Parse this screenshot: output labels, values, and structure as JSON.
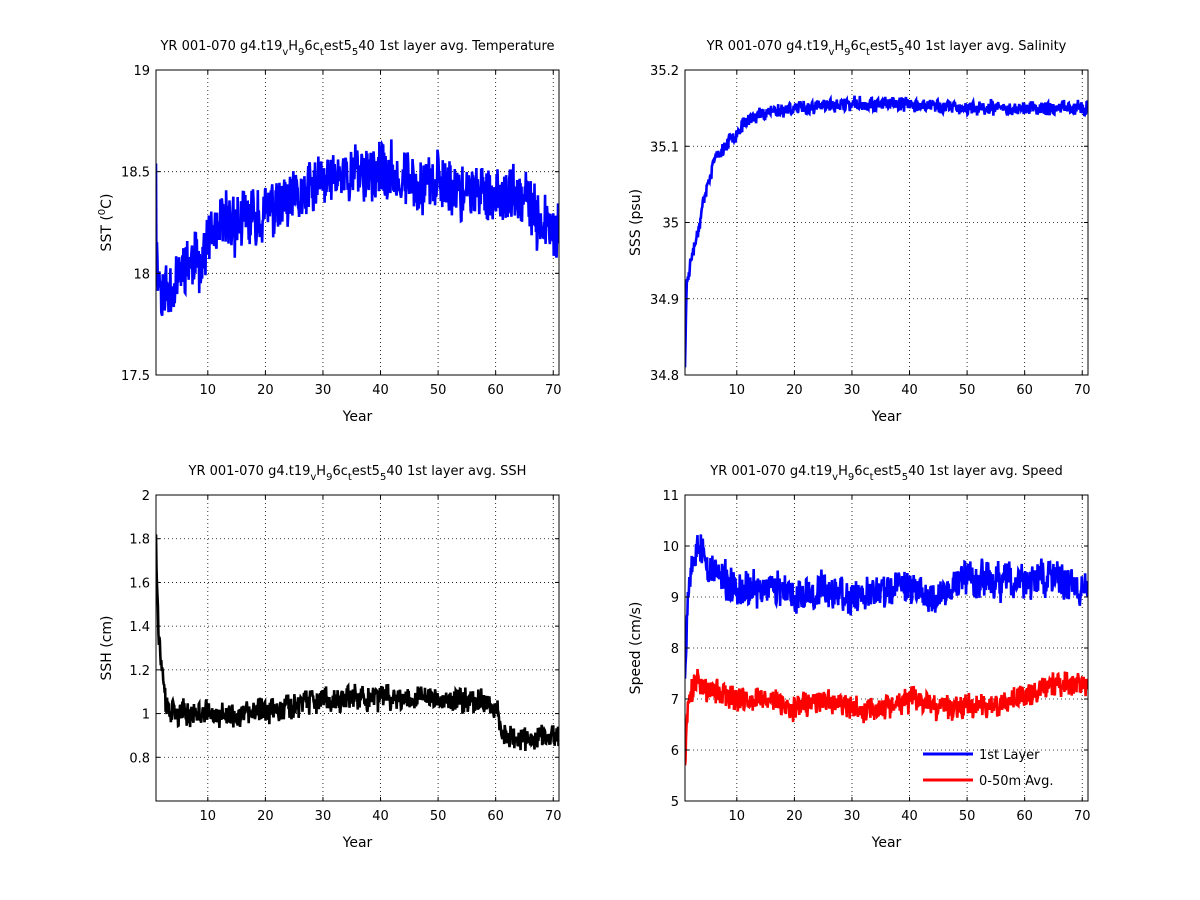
{
  "chart_data": [
    {
      "type": "line",
      "title": {
        "pre": "YR 001-070 g4.t19",
        "s1": "v",
        "m1": "H",
        "s2": "9",
        "m2": "6c",
        "s3": "t",
        "m3": "est5",
        "s4": "5",
        "post": "40 1st layer avg. Temperature"
      },
      "xlabel": "Year",
      "ylabel": {
        "pre": "SST (",
        "sup": "0",
        "post": "C)"
      },
      "xlim": [
        1,
        71
      ],
      "ylim": [
        17.5,
        19
      ],
      "xticks": [
        10,
        20,
        30,
        40,
        50,
        60,
        70
      ],
      "yticks": [
        17.5,
        18,
        18.5,
        19
      ],
      "ytick_labels": [
        "17.5",
        "18",
        "18.5",
        "19"
      ],
      "grid": true,
      "series": [
        {
          "color": "#0000ff",
          "base": [
            [
              1,
              18.1
            ],
            [
              2,
              17.9
            ],
            [
              4,
              17.95
            ],
            [
              6,
              18.05
            ],
            [
              8,
              18.05
            ],
            [
              10,
              18.15
            ],
            [
              13,
              18.25
            ],
            [
              16,
              18.25
            ],
            [
              20,
              18.3
            ],
            [
              25,
              18.35
            ],
            [
              30,
              18.45
            ],
            [
              35,
              18.5
            ],
            [
              40,
              18.5
            ],
            [
              45,
              18.45
            ],
            [
              50,
              18.45
            ],
            [
              55,
              18.4
            ],
            [
              60,
              18.4
            ],
            [
              65,
              18.35
            ],
            [
              68,
              18.25
            ],
            [
              71,
              18.2
            ]
          ],
          "amp": 0.22,
          "seed": 11,
          "start": 18.54,
          "end": 18.15,
          "points": 840
        }
      ]
    },
    {
      "type": "line",
      "title": {
        "pre": "YR 001-070 g4.t19",
        "s1": "v",
        "m1": "H",
        "s2": "9",
        "m2": "6c",
        "s3": "t",
        "m3": "est5",
        "s4": "5",
        "post": "40 1st layer avg. Salinity"
      },
      "xlabel": "Year",
      "ylabel": {
        "pre": "SSS (psu)",
        "sup": "",
        "post": ""
      },
      "xlim": [
        1,
        71
      ],
      "ylim": [
        34.8,
        35.2
      ],
      "xticks": [
        10,
        20,
        30,
        40,
        50,
        60,
        70
      ],
      "yticks": [
        34.8,
        34.9,
        35,
        35.1,
        35.2
      ],
      "ytick_labels": [
        "34.8",
        "34.9",
        "35",
        "35.1",
        "35.2"
      ],
      "grid": true,
      "series": [
        {
          "color": "#0000ff",
          "base": [
            [
              1,
              34.81
            ],
            [
              1.3,
              34.92
            ],
            [
              2,
              34.95
            ],
            [
              3,
              34.98
            ],
            [
              4,
              35.02
            ],
            [
              5,
              35.05
            ],
            [
              6,
              35.08
            ],
            [
              8,
              35.1
            ],
            [
              10,
              35.12
            ],
            [
              12,
              35.135
            ],
            [
              15,
              35.145
            ],
            [
              20,
              35.15
            ],
            [
              30,
              35.155
            ],
            [
              40,
              35.155
            ],
            [
              50,
              35.15
            ],
            [
              60,
              35.15
            ],
            [
              71,
              35.15
            ]
          ],
          "amp": 0.014,
          "seed": 23,
          "start": 34.81,
          "end": 35.15,
          "points": 840
        }
      ]
    },
    {
      "type": "line",
      "title": {
        "pre": "YR 001-070 g4.t19",
        "s1": "v",
        "m1": "H",
        "s2": "9",
        "m2": "6c",
        "s3": "t",
        "m3": "est5",
        "s4": "5",
        "post": "40 1st layer avg. SSH"
      },
      "xlabel": "Year",
      "ylabel": {
        "pre": "SSH (cm)",
        "sup": "",
        "post": ""
      },
      "xlim": [
        1,
        71
      ],
      "ylim": [
        0.6,
        2
      ],
      "xticks": [
        10,
        20,
        30,
        40,
        50,
        60,
        70
      ],
      "yticks": [
        0.8,
        1,
        1.2,
        1.4,
        1.6,
        1.8,
        2
      ],
      "ytick_labels": [
        "0.8",
        "1",
        "1.2",
        "1.4",
        "1.6",
        "1.8",
        "2"
      ],
      "grid": true,
      "series": [
        {
          "color": "#000000",
          "base": [
            [
              1,
              1.82
            ],
            [
              1.2,
              1.6
            ],
            [
              1.5,
              1.35
            ],
            [
              2,
              1.2
            ],
            [
              2.5,
              1.1
            ],
            [
              3,
              1.02
            ],
            [
              5,
              1.0
            ],
            [
              10,
              1.0
            ],
            [
              15,
              0.98
            ],
            [
              20,
              1.02
            ],
            [
              25,
              1.04
            ],
            [
              30,
              1.06
            ],
            [
              35,
              1.07
            ],
            [
              40,
              1.07
            ],
            [
              45,
              1.08
            ],
            [
              50,
              1.07
            ],
            [
              55,
              1.06
            ],
            [
              60,
              1.05
            ],
            [
              61,
              0.92
            ],
            [
              65,
              0.88
            ],
            [
              71,
              0.9
            ]
          ],
          "amp": 0.09,
          "seed": 37,
          "start": 1.82,
          "end": 0.86,
          "points": 840
        }
      ]
    },
    {
      "type": "line",
      "title": {
        "pre": "YR 001-070 g4.t19",
        "s1": "v",
        "m1": "H",
        "s2": "9",
        "m2": "6c",
        "s3": "t",
        "m3": "est5",
        "s4": "5",
        "post": "40 1st layer avg. Speed"
      },
      "xlabel": "Year",
      "ylabel": {
        "pre": "Speed (cm/s)",
        "sup": "",
        "post": ""
      },
      "xlim": [
        1,
        71
      ],
      "ylim": [
        5,
        11
      ],
      "xticks": [
        10,
        20,
        30,
        40,
        50,
        60,
        70
      ],
      "yticks": [
        5,
        6,
        7,
        8,
        9,
        10,
        11
      ],
      "ytick_labels": [
        "5",
        "6",
        "7",
        "8",
        "9",
        "10",
        "11"
      ],
      "grid": true,
      "legend": "bottom-right",
      "series": [
        {
          "name": "1st Layer",
          "color": "#0000ff",
          "base": [
            [
              1,
              7.4
            ],
            [
              1.5,
              9.2
            ],
            [
              3,
              10.1
            ],
            [
              5,
              9.6
            ],
            [
              10,
              9.1
            ],
            [
              15,
              9.2
            ],
            [
              20,
              9.0
            ],
            [
              25,
              9.2
            ],
            [
              30,
              9.0
            ],
            [
              35,
              9.1
            ],
            [
              40,
              9.2
            ],
            [
              45,
              9.0
            ],
            [
              50,
              9.4
            ],
            [
              55,
              9.3
            ],
            [
              60,
              9.3
            ],
            [
              65,
              9.4
            ],
            [
              71,
              9.1
            ]
          ],
          "amp": 0.55,
          "seed": 53,
          "start": 7.4,
          "end": 9.1,
          "points": 840
        },
        {
          "name": "0-50m Avg.",
          "color": "#ff0000",
          "base": [
            [
              1,
              5.7
            ],
            [
              1.5,
              6.9
            ],
            [
              3,
              7.4
            ],
            [
              5,
              7.2
            ],
            [
              10,
              7.0
            ],
            [
              15,
              7.0
            ],
            [
              20,
              6.8
            ],
            [
              25,
              7.0
            ],
            [
              30,
              6.8
            ],
            [
              35,
              6.8
            ],
            [
              40,
              7.0
            ],
            [
              45,
              6.8
            ],
            [
              50,
              6.9
            ],
            [
              55,
              6.9
            ],
            [
              60,
              7.1
            ],
            [
              65,
              7.3
            ],
            [
              71,
              7.2
            ]
          ],
          "amp": 0.38,
          "seed": 71,
          "start": 5.7,
          "end": 7.2,
          "points": 840
        }
      ]
    }
  ]
}
